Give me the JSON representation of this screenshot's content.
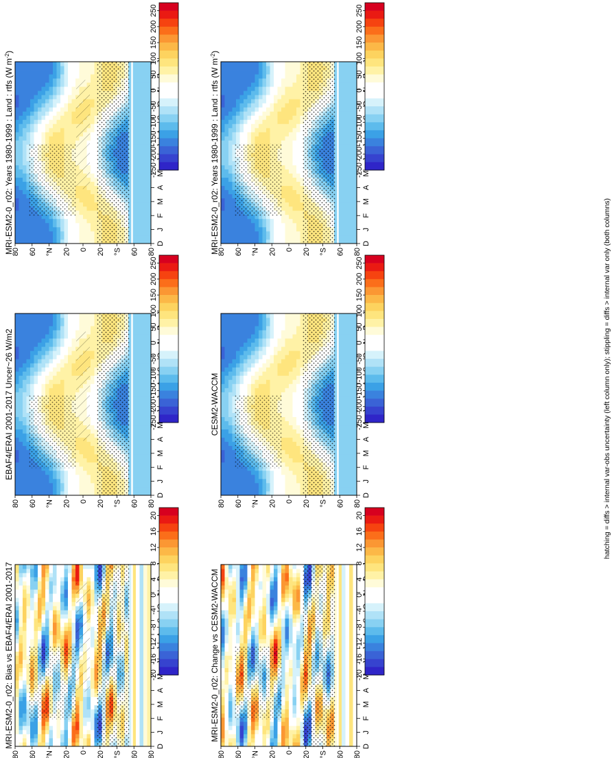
{
  "footer_note": "hatching = diffs > internal var-obs uncertainty (left column only); stippling = diffs > internal var only (both columns)",
  "chart_data": [
    {
      "type": "heatmap",
      "id": "left-top",
      "title": "MRI-ESM2-0_r02: Years 1980-1999 : Land : rtfs (W m",
      "title_sup": "-2",
      "title_tail": ")",
      "x_ticks": [
        "D",
        "J",
        "F",
        "M",
        "A",
        "M",
        "J",
        "J",
        "A",
        "S",
        "O",
        "N",
        "D",
        "J"
      ],
      "y_ticks": [
        "80",
        "60",
        "°N",
        "20",
        "0",
        "20",
        "°S",
        "60",
        "80"
      ],
      "colorbar_labels": [
        "250",
        "200",
        "150",
        "100",
        "50",
        "0",
        "-50",
        "-100",
        "-150",
        "-200",
        "-250"
      ],
      "field": "mean",
      "hatching": true,
      "stippling": true
    },
    {
      "type": "heatmap",
      "id": "right-top",
      "title": "MRI-ESM2-0_r02: Years 1980-1999 : Land : rtfs (W m",
      "title_sup": "-2",
      "title_tail": ")",
      "x_ticks": [
        "D",
        "J",
        "F",
        "M",
        "A",
        "M",
        "J",
        "J",
        "A",
        "S",
        "O",
        "N",
        "D",
        "J"
      ],
      "y_ticks": [
        "80",
        "60",
        "°N",
        "20",
        "0",
        "20",
        "°S",
        "60",
        "80"
      ],
      "colorbar_labels": [
        "250",
        "200",
        "150",
        "100",
        "50",
        "0",
        "-50",
        "-100",
        "-150",
        "-200",
        "-250"
      ],
      "field": "mean",
      "hatching": false,
      "stippling": true
    },
    {
      "type": "heatmap",
      "id": "left-mid",
      "title": "EBAF4/ERAI 2001-2017 Uncer~26 W/m2",
      "x_ticks": [
        "D",
        "J",
        "F",
        "M",
        "A",
        "M",
        "J",
        "J",
        "A",
        "S",
        "O",
        "N",
        "D",
        "J"
      ],
      "y_ticks": [
        "80",
        "60",
        "°N",
        "20",
        "0",
        "20",
        "°S",
        "60",
        "80"
      ],
      "colorbar_labels": [
        "250",
        "200",
        "150",
        "100",
        "50",
        "0",
        "-50",
        "-100",
        "-150",
        "-200",
        "-250"
      ],
      "field": "mean",
      "hatching": true,
      "stippling": true
    },
    {
      "type": "heatmap",
      "id": "right-mid",
      "title": "CESM2-WACCM",
      "x_ticks": [
        "D",
        "J",
        "F",
        "M",
        "A",
        "M",
        "J",
        "J",
        "A",
        "S",
        "O",
        "N",
        "D",
        "J"
      ],
      "y_ticks": [
        "80",
        "60",
        "°N",
        "20",
        "0",
        "20",
        "°S",
        "60",
        "80"
      ],
      "colorbar_labels": [
        "250",
        "200",
        "150",
        "100",
        "50",
        "0",
        "-50",
        "-100",
        "-150",
        "-200",
        "-250"
      ],
      "field": "mean",
      "hatching": false,
      "stippling": true
    },
    {
      "type": "heatmap",
      "id": "left-bot",
      "title": "MRI-ESM2-0_r02: Bias vs EBAF4/ERAI 2001-2017",
      "x_ticks": [
        "D",
        "J",
        "F",
        "M",
        "A",
        "M",
        "J",
        "J",
        "A",
        "S",
        "O",
        "N",
        "D",
        "J"
      ],
      "y_ticks": [
        "80",
        "60",
        "°N",
        "20",
        "0",
        "20",
        "°S",
        "60",
        "80"
      ],
      "colorbar_labels": [
        "20",
        "16",
        "12",
        "8",
        "4",
        "0",
        "-4",
        "-8",
        "-12",
        "-16",
        "-20"
      ],
      "field": "diff",
      "hatching": true,
      "stippling": true
    },
    {
      "type": "heatmap",
      "id": "right-bot",
      "title": "MRI-ESM2-0_r02: Change vs CESM2-WACCM",
      "x_ticks": [
        "D",
        "J",
        "F",
        "M",
        "A",
        "M",
        "J",
        "J",
        "A",
        "S",
        "O",
        "N",
        "D",
        "J"
      ],
      "y_ticks": [
        "80",
        "60",
        "°N",
        "20",
        "0",
        "20",
        "°S",
        "60",
        "80"
      ],
      "colorbar_labels": [
        "20",
        "16",
        "12",
        "8",
        "4",
        "0",
        "-4",
        "-8",
        "-12",
        "-16",
        "-20"
      ],
      "field": "diff",
      "hatching": false,
      "stippling": true
    }
  ],
  "colors": [
    "#d7001f",
    "#ea1a13",
    "#f64310",
    "#fb6e1a",
    "#fb9733",
    "#fcb847",
    "#fdd35f",
    "#fee57e",
    "#fff2a6",
    "#fffbd9",
    "#ffffff",
    "#ffffff",
    "#d6f2fb",
    "#b0e2f7",
    "#88d1f2",
    "#5dbbec",
    "#3ba1e6",
    "#3a82de",
    "#3a63d6",
    "#3643cf",
    "#2f25c8"
  ],
  "layout_refs": {
    "colorbar_steps": 21
  }
}
